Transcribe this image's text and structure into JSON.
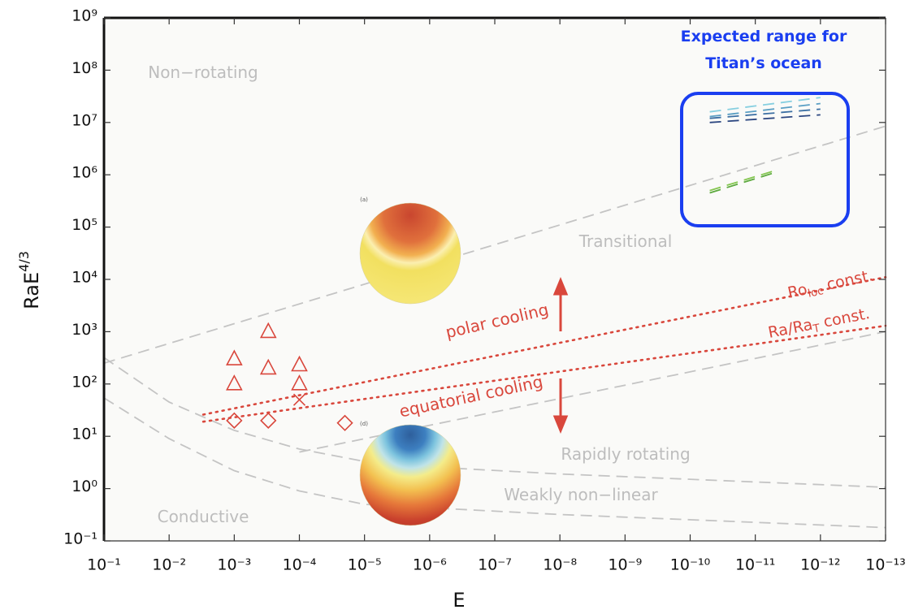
{
  "chart_data": {
    "type": "scatter",
    "x_label": "E",
    "y_label": {
      "base": "RaE",
      "sup": "4/3"
    },
    "xscale": "log",
    "yscale": "log",
    "xlim": [
      0.1,
      1e-13
    ],
    "ylim": [
      0.1,
      1000000000.0
    ],
    "xticks": [
      {
        "value": 0.1,
        "label": "10⁻¹"
      },
      {
        "value": 0.01,
        "label": "10⁻²"
      },
      {
        "value": 0.001,
        "label": "10⁻³"
      },
      {
        "value": 0.0001,
        "label": "10⁻⁴"
      },
      {
        "value": 1e-05,
        "label": "10⁻⁵"
      },
      {
        "value": 1e-06,
        "label": "10⁻⁶"
      },
      {
        "value": 1e-07,
        "label": "10⁻⁷"
      },
      {
        "value": 1e-08,
        "label": "10⁻⁸"
      },
      {
        "value": 1e-09,
        "label": "10⁻⁹"
      },
      {
        "value": 1e-10,
        "label": "10⁻¹⁰"
      },
      {
        "value": 1e-11,
        "label": "10⁻¹¹"
      },
      {
        "value": 1e-12,
        "label": "10⁻¹²"
      },
      {
        "value": 1e-13,
        "label": "10⁻¹³"
      }
    ],
    "yticks": [
      {
        "value": 0.1,
        "label": "10⁻¹"
      },
      {
        "value": 1,
        "label": "10⁰"
      },
      {
        "value": 10,
        "label": "10¹"
      },
      {
        "value": 100,
        "label": "10²"
      },
      {
        "value": 1000,
        "label": "10³"
      },
      {
        "value": 10000,
        "label": "10⁴"
      },
      {
        "value": 100000,
        "label": "10⁵"
      },
      {
        "value": 1000000,
        "label": "10⁶"
      },
      {
        "value": 10000000,
        "label": "10⁷"
      },
      {
        "value": 100000000,
        "label": "10⁸"
      },
      {
        "value": 1000000000,
        "label": "10⁹"
      }
    ],
    "grid": false,
    "series": [
      {
        "marker": "triangle",
        "color": "#d9473c",
        "x": [
          0.001,
          0.001,
          0.0003,
          0.0003,
          0.0001,
          0.0001
        ],
        "y": [
          300,
          100,
          1000,
          200,
          230,
          100
        ]
      },
      {
        "marker": "diamond",
        "color": "#d9473c",
        "x": [
          0.001,
          0.0003,
          2e-05
        ],
        "y": [
          20,
          20,
          18
        ]
      },
      {
        "marker": "cross",
        "color": "#d9473c",
        "x": [
          0.0001
        ],
        "y": [
          50
        ]
      },
      {
        "line_style": "dashed",
        "color": "#c4c4c4",
        "x": [
          0.1,
          1e-13
        ],
        "y": [
          250,
          8500000
        ]
      },
      {
        "line_style": "dashed",
        "color": "#c4c4c4",
        "x": [
          0.1,
          0.01,
          0.001,
          0.0001,
          1e-05,
          1e-06,
          1e-08,
          1e-13
        ],
        "y": [
          320,
          45,
          13,
          5.7,
          3.3,
          2.6,
          1.9,
          1.06
        ]
      },
      {
        "line_style": "dashed",
        "color": "#c4c4c4",
        "x": [
          0.1,
          0.01,
          0.001,
          0.0001,
          1e-05,
          1e-06,
          1e-08,
          1e-13
        ],
        "y": [
          54,
          9,
          2.2,
          0.9,
          0.5,
          0.43,
          0.32,
          0.18
        ]
      },
      {
        "line_style": "dashed",
        "color": "#c4c4c4",
        "x": [
          0.0001,
          1e-13
        ],
        "y": [
          5,
          1000
        ]
      },
      {
        "line_style": "dotted",
        "color": "#d9473c",
        "x": [
          0.003,
          1e-13
        ],
        "y": [
          26,
          11000
        ]
      },
      {
        "line_style": "dotted",
        "color": "#d9473c",
        "x": [
          0.003,
          1e-13
        ],
        "y": [
          19,
          1300
        ]
      },
      {
        "line_style": "dashed",
        "color": "#86cfe0",
        "x": [
          5e-11,
          1e-12
        ],
        "y": [
          16000000,
          30000000
        ]
      },
      {
        "line_style": "dashed",
        "color": "#5a9fc4",
        "x": [
          5e-11,
          1e-12
        ],
        "y": [
          13000000,
          23000000
        ]
      },
      {
        "line_style": "dashed",
        "color": "#3b6fa3",
        "x": [
          5e-11,
          1e-12
        ],
        "y": [
          12000000,
          18000000
        ]
      },
      {
        "line_style": "dashed",
        "color": "#2b4680",
        "x": [
          5e-11,
          1e-12
        ],
        "y": [
          10000000,
          14000000
        ]
      },
      {
        "line_style": "dashed",
        "color": "#5ca93e",
        "x": [
          5e-11,
          5e-12
        ],
        "y": [
          450000,
          1100000
        ]
      },
      {
        "line_style": "dashed",
        "color": "#84c650",
        "x": [
          5e-11,
          5e-12
        ],
        "y": [
          500000,
          1200000
        ]
      }
    ],
    "annotations": [
      {
        "color": "#bdbdbd",
        "parts": [
          {
            "text": "Non−rotating"
          }
        ]
      },
      {
        "color": "#bdbdbd",
        "parts": [
          {
            "text": "Transitional"
          }
        ]
      },
      {
        "color": "#bdbdbd",
        "parts": [
          {
            "text": "Rapidly rotating"
          }
        ]
      },
      {
        "color": "#bdbdbd",
        "parts": [
          {
            "text": "Weakly non−linear"
          }
        ]
      },
      {
        "color": "#bdbdbd",
        "parts": [
          {
            "text": "Conductive"
          }
        ]
      },
      {
        "color": "#d9473c",
        "parts": [
          {
            "text": "polar cooling"
          }
        ]
      },
      {
        "color": "#d9473c",
        "parts": [
          {
            "text": "equatorial cooling"
          }
        ]
      },
      {
        "color": "#d9473c",
        "parts": [
          {
            "text": "Ro"
          },
          {
            "text": "loc",
            "sub": true
          },
          {
            "text": " const."
          }
        ]
      },
      {
        "color": "#d9473c",
        "parts": [
          {
            "text": "Ra/Ra"
          },
          {
            "text": "T",
            "sub": true
          },
          {
            "text": " const."
          }
        ]
      },
      {
        "color": "#555555",
        "parts": [
          {
            "text": "(a)"
          }
        ]
      },
      {
        "color": "#555555",
        "parts": [
          {
            "text": "(d)"
          }
        ]
      },
      {
        "color": "#1a3ef0",
        "parts": [
          {
            "text": "Expected range for"
          }
        ]
      },
      {
        "color": "#1a3ef0",
        "parts": [
          {
            "text": "Titan’s ocean"
          }
        ]
      }
    ]
  }
}
